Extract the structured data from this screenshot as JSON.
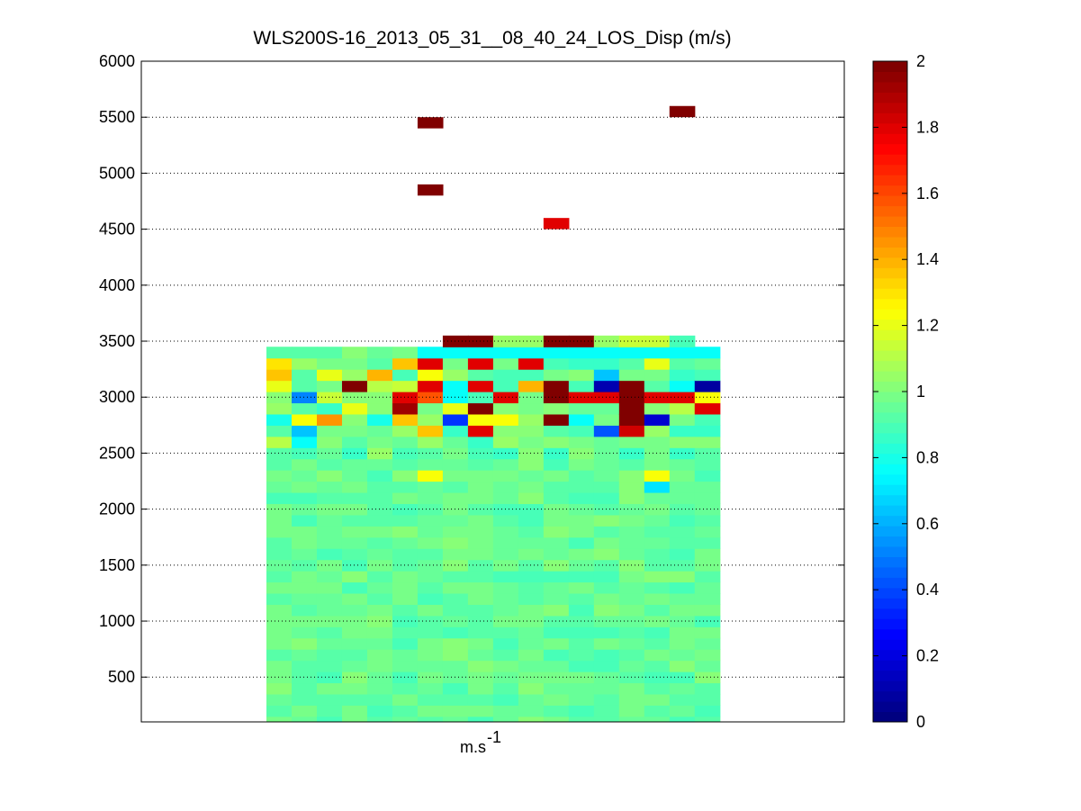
{
  "chart_data": {
    "type": "heatmap",
    "title": "WLS200S-16_2013_05_31__08_40_24_LOS_Disp (m/s)",
    "xlabel": "m.s",
    "xlabel_superscript": "-1",
    "ylabel": "",
    "ylim": [
      100,
      6000
    ],
    "yticks": [
      500,
      1000,
      1500,
      2000,
      2500,
      3000,
      3500,
      4000,
      4500,
      5000,
      5500,
      6000
    ],
    "y_grid": "dotted",
    "colormap": "jet",
    "clim": [
      0,
      2
    ],
    "colorbar_ticks": [
      "0",
      "0.2",
      "0.4",
      "0.6",
      "0.8",
      "1",
      "1.2",
      "1.4",
      "1.6",
      "1.8",
      "2"
    ],
    "columns": 18,
    "column_x_range_fraction": [
      0.178,
      0.823
    ],
    "range_gate_m": 100,
    "data_top_m": 3400,
    "background_level": 0.95,
    "notable_cells": [
      {
        "col": 0,
        "y": 3300,
        "v": 1.3
      },
      {
        "col": 0,
        "y": 3200,
        "v": 1.35
      },
      {
        "col": 0,
        "y": 3100,
        "v": 1.2
      },
      {
        "col": 0,
        "y": 2800,
        "v": 0.8
      },
      {
        "col": 0,
        "y": 2600,
        "v": 1.1
      },
      {
        "col": 1,
        "y": 3000,
        "v": 0.5
      },
      {
        "col": 1,
        "y": 2800,
        "v": 1.25
      },
      {
        "col": 1,
        "y": 2700,
        "v": 0.65
      },
      {
        "col": 1,
        "y": 2600,
        "v": 0.75
      },
      {
        "col": 2,
        "y": 3200,
        "v": 1.2
      },
      {
        "col": 2,
        "y": 2800,
        "v": 1.45
      },
      {
        "col": 2,
        "y": 3000,
        "v": 1.15
      },
      {
        "col": 3,
        "y": 3100,
        "v": 2.0
      },
      {
        "col": 3,
        "y": 2900,
        "v": 1.2
      },
      {
        "col": 4,
        "y": 3200,
        "v": 1.4
      },
      {
        "col": 4,
        "y": 3100,
        "v": 1.1
      },
      {
        "col": 4,
        "y": 2800,
        "v": 0.8
      },
      {
        "col": 5,
        "y": 3300,
        "v": 1.35
      },
      {
        "col": 5,
        "y": 3000,
        "v": 1.8
      },
      {
        "col": 5,
        "y": 2900,
        "v": 1.95
      },
      {
        "col": 5,
        "y": 2800,
        "v": 1.35
      },
      {
        "col": 5,
        "y": 3100,
        "v": 1.15
      },
      {
        "col": 6,
        "y": 3400,
        "v": 0.75
      },
      {
        "col": 6,
        "y": 3300,
        "v": 1.8
      },
      {
        "col": 6,
        "y": 3100,
        "v": 1.8
      },
      {
        "col": 6,
        "y": 3000,
        "v": 1.6
      },
      {
        "col": 6,
        "y": 3200,
        "v": 1.25
      },
      {
        "col": 6,
        "y": 2700,
        "v": 1.35
      },
      {
        "col": 6,
        "y": 2300,
        "v": 1.25
      },
      {
        "col": 7,
        "y": 3500,
        "v": 2.0
      },
      {
        "col": 7,
        "y": 3400,
        "v": 0.75
      },
      {
        "col": 7,
        "y": 3100,
        "v": 0.75
      },
      {
        "col": 7,
        "y": 3000,
        "v": 0.75
      },
      {
        "col": 7,
        "y": 2900,
        "v": 1.2
      },
      {
        "col": 7,
        "y": 2800,
        "v": 0.35
      },
      {
        "col": 8,
        "y": 3500,
        "v": 2.0
      },
      {
        "col": 8,
        "y": 3400,
        "v": 0.75
      },
      {
        "col": 8,
        "y": 3300,
        "v": 1.8
      },
      {
        "col": 8,
        "y": 3100,
        "v": 1.8
      },
      {
        "col": 8,
        "y": 2900,
        "v": 2.0
      },
      {
        "col": 8,
        "y": 2800,
        "v": 1.25
      },
      {
        "col": 8,
        "y": 2700,
        "v": 1.8
      },
      {
        "col": 9,
        "y": 3500,
        "v": 1.05
      },
      {
        "col": 9,
        "y": 3400,
        "v": 0.75
      },
      {
        "col": 9,
        "y": 3000,
        "v": 1.8
      },
      {
        "col": 9,
        "y": 2800,
        "v": 1.25
      },
      {
        "col": 10,
        "y": 3500,
        "v": 1.05
      },
      {
        "col": 10,
        "y": 3400,
        "v": 0.75
      },
      {
        "col": 10,
        "y": 3300,
        "v": 1.8
      },
      {
        "col": 10,
        "y": 3100,
        "v": 1.4
      },
      {
        "col": 11,
        "y": 3500,
        "v": 2.0
      },
      {
        "col": 11,
        "y": 3400,
        "v": 0.75
      },
      {
        "col": 11,
        "y": 3100,
        "v": 2.0
      },
      {
        "col": 11,
        "y": 3000,
        "v": 2.0
      },
      {
        "col": 11,
        "y": 2800,
        "v": 2.0
      },
      {
        "col": 12,
        "y": 3500,
        "v": 2.0
      },
      {
        "col": 12,
        "y": 3400,
        "v": 0.75
      },
      {
        "col": 12,
        "y": 3000,
        "v": 1.8
      },
      {
        "col": 12,
        "y": 2800,
        "v": 0.75
      },
      {
        "col": 13,
        "y": 3500,
        "v": 1.05
      },
      {
        "col": 13,
        "y": 3400,
        "v": 0.75
      },
      {
        "col": 13,
        "y": 3200,
        "v": 0.65
      },
      {
        "col": 13,
        "y": 3100,
        "v": 0.1
      },
      {
        "col": 13,
        "y": 3000,
        "v": 1.8
      },
      {
        "col": 13,
        "y": 2700,
        "v": 0.4
      },
      {
        "col": 14,
        "y": 3500,
        "v": 1.15
      },
      {
        "col": 14,
        "y": 3400,
        "v": 0.75
      },
      {
        "col": 14,
        "y": 3100,
        "v": 2.0
      },
      {
        "col": 14,
        "y": 3000,
        "v": 2.0
      },
      {
        "col": 14,
        "y": 2900,
        "v": 2.0
      },
      {
        "col": 14,
        "y": 2800,
        "v": 2.0
      },
      {
        "col": 14,
        "y": 2700,
        "v": 1.85
      },
      {
        "col": 14,
        "y": 2500,
        "v": 0.85
      },
      {
        "col": 15,
        "y": 3500,
        "v": 1.15
      },
      {
        "col": 15,
        "y": 3400,
        "v": 0.75
      },
      {
        "col": 15,
        "y": 3300,
        "v": 1.2
      },
      {
        "col": 15,
        "y": 3000,
        "v": 1.8
      },
      {
        "col": 15,
        "y": 2800,
        "v": 0.15
      },
      {
        "col": 15,
        "y": 2300,
        "v": 1.25
      },
      {
        "col": 15,
        "y": 2200,
        "v": 0.7
      },
      {
        "col": 16,
        "y": 3500,
        "v": 0.9
      },
      {
        "col": 16,
        "y": 3400,
        "v": 0.75
      },
      {
        "col": 16,
        "y": 3100,
        "v": 0.75
      },
      {
        "col": 16,
        "y": 3000,
        "v": 1.8
      },
      {
        "col": 16,
        "y": 2900,
        "v": 1.1
      },
      {
        "col": 17,
        "y": 3400,
        "v": 0.75
      },
      {
        "col": 17,
        "y": 3100,
        "v": 0.05
      },
      {
        "col": 17,
        "y": 3000,
        "v": 1.25
      },
      {
        "col": 17,
        "y": 2900,
        "v": 1.8
      },
      {
        "col": 17,
        "y": 2700,
        "v": 0.85
      }
    ],
    "isolated_cells": [
      {
        "col": 6,
        "y": 5450,
        "v": 2.0
      },
      {
        "col": 6,
        "y": 4850,
        "v": 2.0
      },
      {
        "col": 11,
        "y": 4550,
        "v": 1.8
      },
      {
        "col": 16,
        "y": 5550,
        "v": 2.0
      }
    ]
  }
}
